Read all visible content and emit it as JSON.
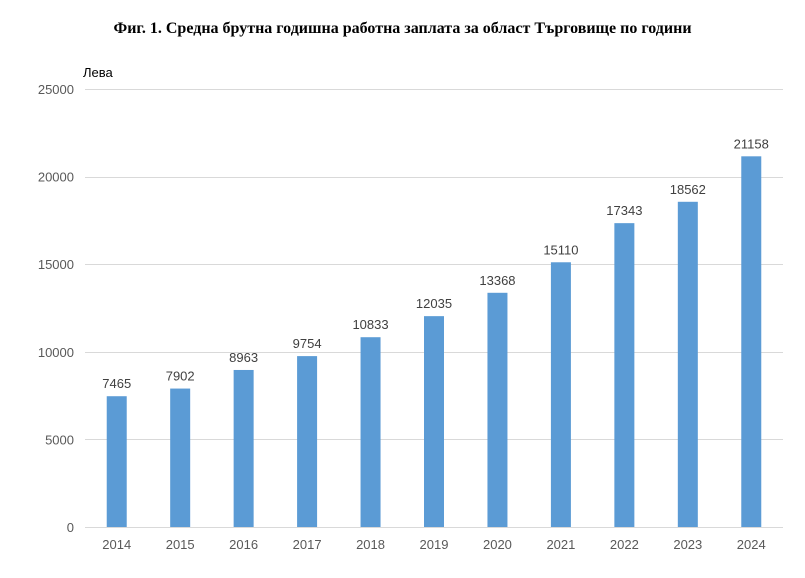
{
  "chart_data": {
    "type": "bar",
    "title": "Фиг. 1. Средна брутна годишна работна заплата за област Търговище по години",
    "ylabel": "Лева",
    "xlabel": "",
    "categories": [
      "2014",
      "2015",
      "2016",
      "2017",
      "2018",
      "2019",
      "2020",
      "2021",
      "2022",
      "2023",
      "2024"
    ],
    "values": [
      7465,
      7902,
      8963,
      9754,
      10833,
      12035,
      13368,
      15110,
      17343,
      18562,
      21158
    ],
    "ylim": [
      0,
      25000
    ],
    "yticks": [
      0,
      5000,
      10000,
      15000,
      20000,
      25000
    ],
    "grid": true,
    "legend": "none",
    "bar_color": "#5B9BD5",
    "grid_color": "#D9D9D9"
  }
}
